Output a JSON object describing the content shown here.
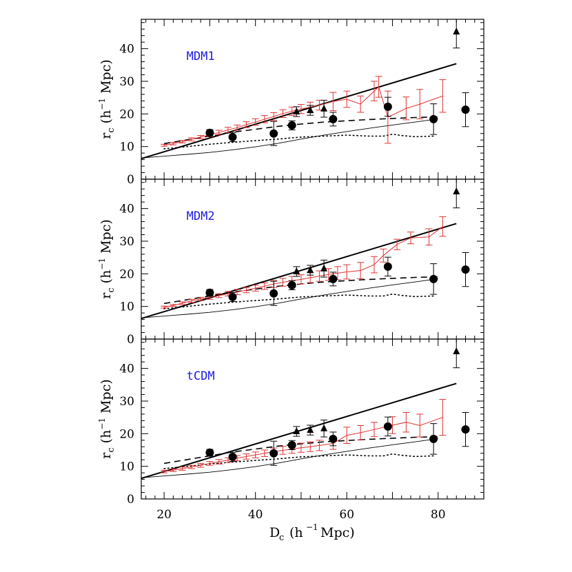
{
  "chart_data": [
    {
      "type": "line",
      "panel_label": "MDM1",
      "xlim": [
        15,
        90
      ],
      "ylim": [
        0,
        49
      ],
      "x_ticks": [
        "20",
        "40",
        "60",
        "80"
      ],
      "y_ticks": [
        "0",
        "10",
        "20",
        "30",
        "40"
      ],
      "ylabel": "r",
      "ylabel_sub": "c",
      "ylabel_rest": "(h",
      "ylabel_sup": "−1",
      "ylabel_unit": "Mpc)",
      "colors": {
        "model": "#e03030",
        "data": "#000000",
        "label": "#1a1adf"
      },
      "series": [
        {
          "name": "",
          "style": "thick-solid",
          "x": [
            15,
            84
          ],
          "y": [
            6.3,
            35.4
          ]
        },
        {
          "name": "",
          "style": "thin-solid",
          "x": [
            15,
            25,
            30,
            35,
            40,
            45,
            50,
            55,
            60,
            65,
            70,
            75,
            80
          ],
          "y": [
            6.5,
            7.6,
            8.2,
            9.0,
            9.9,
            11.0,
            12.3,
            13.5,
            14.6,
            15.6,
            16.6,
            17.5,
            18.5
          ]
        },
        {
          "name": "",
          "style": "dashed",
          "x": [
            20,
            30,
            35,
            40,
            45,
            50,
            55,
            60,
            65,
            70,
            75,
            80
          ],
          "y": [
            10.9,
            13.2,
            14.4,
            15.3,
            16.2,
            16.9,
            17.5,
            17.9,
            18.3,
            18.6,
            18.9,
            19.1
          ]
        },
        {
          "name": "",
          "style": "dotted",
          "x": [
            20,
            25,
            30,
            35,
            40,
            45,
            50,
            55,
            60,
            65,
            68,
            70,
            72,
            75,
            79
          ],
          "y": [
            9.3,
            10.0,
            10.7,
            11.3,
            11.8,
            12.3,
            12.9,
            13.2,
            13.5,
            13.2,
            13.2,
            13.8,
            13.4,
            13.0,
            13.2
          ]
        },
        {
          "name": "",
          "style": "model-errorbars",
          "x": [
            20,
            22,
            24,
            26,
            28,
            30,
            32,
            34,
            36,
            38,
            40,
            42,
            44,
            46,
            48,
            50,
            52,
            54,
            57,
            60,
            63,
            66,
            67,
            69,
            73,
            76,
            81
          ],
          "y": [
            10.4,
            10.9,
            11.5,
            12.2,
            12.9,
            13.6,
            14.3,
            15.1,
            15.8,
            16.7,
            17.5,
            18.4,
            19.2,
            20.1,
            20.8,
            21.5,
            22.1,
            22.7,
            23.8,
            24.5,
            23.0,
            27.0,
            28.3,
            19.0,
            21.7,
            23.0,
            25.5
          ],
          "err": [
            0.3,
            0.4,
            0.4,
            0.5,
            0.5,
            0.6,
            0.7,
            0.8,
            0.8,
            0.9,
            1.0,
            1.1,
            1.2,
            1.2,
            1.3,
            1.4,
            1.5,
            1.5,
            2.8,
            2.5,
            2.5,
            3.0,
            3.2,
            8.0,
            3.5,
            4.5,
            5.0
          ]
        },
        {
          "name": "",
          "style": "circles",
          "x": [
            30,
            35,
            44,
            48,
            57,
            69,
            79,
            86
          ],
          "y": [
            14.2,
            12.9,
            14.0,
            16.5,
            18.4,
            22.2,
            18.4,
            21.3
          ],
          "err": [
            1.0,
            1.4,
            3.7,
            1.4,
            2.1,
            2.9,
            4.7,
            5.2
          ]
        },
        {
          "name": "",
          "style": "triangles",
          "x": [
            49,
            52,
            55,
            84
          ],
          "y": [
            20.7,
            21.1,
            21.6,
            45.2
          ],
          "err": [
            1.5,
            1.5,
            2.6,
            5.0
          ]
        }
      ]
    },
    {
      "type": "line",
      "panel_label": "MDM2",
      "xlim": [
        15,
        90
      ],
      "ylim": [
        0,
        49
      ],
      "x_ticks": [
        "20",
        "40",
        "60",
        "80"
      ],
      "y_ticks": [
        "0",
        "10",
        "20",
        "30",
        "40"
      ],
      "ylabel": "r",
      "ylabel_sub": "c",
      "ylabel_rest": "(h",
      "ylabel_sup": "−1",
      "ylabel_unit": "Mpc)",
      "colors": {
        "model": "#e03030",
        "data": "#000000",
        "label": "#1a1adf"
      },
      "series": [
        {
          "name": "",
          "style": "thick-solid",
          "x": [
            15,
            84
          ],
          "y": [
            6.3,
            35.4
          ]
        },
        {
          "name": "",
          "style": "thin-solid",
          "x": [
            15,
            25,
            30,
            35,
            40,
            45,
            50,
            55,
            60,
            65,
            70,
            75,
            80
          ],
          "y": [
            6.5,
            7.6,
            8.2,
            9.0,
            9.9,
            11.0,
            12.3,
            13.5,
            14.6,
            15.6,
            16.6,
            17.5,
            18.5
          ]
        },
        {
          "name": "",
          "style": "dashed",
          "x": [
            20,
            30,
            35,
            40,
            45,
            50,
            55,
            60,
            65,
            70,
            75,
            80
          ],
          "y": [
            10.9,
            13.2,
            14.4,
            15.3,
            16.2,
            16.9,
            17.5,
            17.9,
            18.3,
            18.6,
            18.9,
            19.1
          ]
        },
        {
          "name": "",
          "style": "dotted",
          "x": [
            20,
            25,
            30,
            35,
            40,
            45,
            50,
            55,
            60,
            65,
            68,
            70,
            72,
            75,
            79
          ],
          "y": [
            9.3,
            10.0,
            10.7,
            11.3,
            11.8,
            12.3,
            12.9,
            13.2,
            13.5,
            13.2,
            13.2,
            13.8,
            13.4,
            13.0,
            13.2
          ]
        },
        {
          "name": "",
          "style": "model-errorbars",
          "x": [
            20,
            22,
            24,
            26,
            28,
            30,
            32,
            34,
            36,
            38,
            40,
            42,
            44,
            46,
            48,
            50,
            52,
            54,
            56,
            58,
            60,
            63,
            66,
            68,
            71,
            74,
            78,
            81
          ],
          "y": [
            9.8,
            10.3,
            11.0,
            11.7,
            12.3,
            12.8,
            13.3,
            13.9,
            14.4,
            15.0,
            15.6,
            16.2,
            16.9,
            17.4,
            17.9,
            18.3,
            18.8,
            19.3,
            19.8,
            20.2,
            20.6,
            21.0,
            22.8,
            25.6,
            29.0,
            31.0,
            31.3,
            34.5
          ],
          "err": [
            0.3,
            0.3,
            0.4,
            0.5,
            0.5,
            0.6,
            0.6,
            0.7,
            0.8,
            0.8,
            0.9,
            1.0,
            1.1,
            1.2,
            1.3,
            1.4,
            1.5,
            1.6,
            1.8,
            2.0,
            2.2,
            2.5,
            2.5,
            2.0,
            1.6,
            1.8,
            2.5,
            3.0
          ]
        },
        {
          "name": "",
          "style": "circles",
          "x": [
            30,
            35,
            44,
            48,
            57,
            69,
            79,
            86
          ],
          "y": [
            14.2,
            12.9,
            14.0,
            16.5,
            18.4,
            22.2,
            18.4,
            21.3
          ],
          "err": [
            1.0,
            1.4,
            3.7,
            1.4,
            2.1,
            2.9,
            4.7,
            5.2
          ]
        },
        {
          "name": "",
          "style": "triangles",
          "x": [
            49,
            52,
            55,
            84
          ],
          "y": [
            20.7,
            21.1,
            21.6,
            45.2
          ],
          "err": [
            1.5,
            1.5,
            2.6,
            5.0
          ]
        }
      ]
    },
    {
      "type": "line",
      "panel_label": "tCDM",
      "xlim": [
        15,
        90
      ],
      "ylim": [
        0,
        49
      ],
      "x_ticks": [
        "20",
        "40",
        "60",
        "80"
      ],
      "y_ticks": [
        "0",
        "10",
        "20",
        "30",
        "40"
      ],
      "ylabel": "r",
      "ylabel_sub": "c",
      "ylabel_rest": "(h",
      "ylabel_sup": "−1",
      "ylabel_unit": "Mpc)",
      "xlabel": "D",
      "xlabel_sub": "c",
      "xlabel_rest": "(h",
      "xlabel_sup": "−1",
      "xlabel_unit": "Mpc)",
      "colors": {
        "model": "#e03030",
        "data": "#000000",
        "label": "#1a1adf"
      },
      "series": [
        {
          "name": "",
          "style": "thick-solid",
          "x": [
            15,
            84
          ],
          "y": [
            6.3,
            35.4
          ]
        },
        {
          "name": "",
          "style": "thin-solid",
          "x": [
            15,
            25,
            30,
            35,
            40,
            45,
            50,
            55,
            60,
            65,
            70,
            75,
            80
          ],
          "y": [
            6.5,
            7.6,
            8.2,
            9.0,
            9.9,
            11.0,
            12.3,
            13.5,
            14.6,
            15.6,
            16.6,
            17.5,
            18.5
          ]
        },
        {
          "name": "",
          "style": "dashed",
          "x": [
            20,
            30,
            35,
            40,
            45,
            50,
            55,
            60,
            65,
            70,
            75,
            80
          ],
          "y": [
            10.9,
            13.2,
            14.4,
            15.3,
            16.2,
            16.9,
            17.5,
            17.9,
            18.3,
            18.6,
            18.9,
            19.1
          ]
        },
        {
          "name": "",
          "style": "dotted",
          "x": [
            20,
            25,
            30,
            35,
            40,
            45,
            50,
            55,
            60,
            65,
            68,
            70,
            72,
            75,
            79
          ],
          "y": [
            9.3,
            10.0,
            10.7,
            11.3,
            11.8,
            12.3,
            12.9,
            13.2,
            13.5,
            13.2,
            13.2,
            13.8,
            13.4,
            13.0,
            13.2
          ]
        },
        {
          "name": "",
          "style": "model-errorbars",
          "x": [
            20,
            22,
            24,
            26,
            28,
            30,
            32,
            34,
            36,
            38,
            40,
            42,
            44,
            46,
            48,
            50,
            52,
            54,
            57,
            60,
            63,
            66,
            70,
            73,
            76,
            81
          ],
          "y": [
            8.4,
            8.8,
            9.3,
            9.8,
            10.3,
            10.9,
            11.4,
            11.9,
            12.5,
            13.0,
            13.5,
            14.0,
            14.5,
            14.9,
            15.3,
            15.7,
            16.0,
            16.4,
            17.0,
            19.5,
            20.3,
            21.3,
            22.6,
            23.5,
            22.5,
            25.0
          ],
          "err": [
            0.4,
            0.4,
            0.5,
            0.5,
            0.6,
            0.6,
            0.7,
            0.7,
            0.8,
            0.8,
            0.9,
            1.0,
            1.1,
            1.2,
            1.3,
            1.4,
            1.5,
            1.6,
            1.8,
            2.5,
            2.2,
            2.2,
            2.6,
            3.0,
            3.5,
            5.5
          ]
        },
        {
          "name": "",
          "style": "circles",
          "x": [
            30,
            35,
            44,
            48,
            57,
            69,
            79,
            86
          ],
          "y": [
            14.2,
            12.9,
            14.0,
            16.5,
            18.4,
            22.2,
            18.4,
            21.3
          ],
          "err": [
            1.0,
            1.4,
            3.7,
            1.4,
            2.1,
            2.9,
            4.7,
            5.2
          ]
        },
        {
          "name": "",
          "style": "triangles",
          "x": [
            49,
            52,
            55,
            84
          ],
          "y": [
            20.7,
            21.1,
            21.6,
            45.2
          ],
          "err": [
            1.5,
            1.5,
            2.6,
            5.0
          ]
        }
      ]
    }
  ]
}
